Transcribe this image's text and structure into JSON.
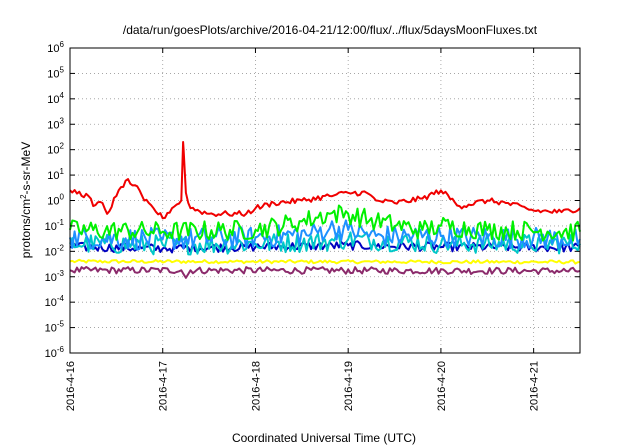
{
  "chart_data": {
    "type": "line",
    "title": "/data/run/goesPlots/archive/2016-04-21/12:00/flux/../flux/5daysMoonFluxes.txt",
    "xlabel": "Coordinated Universal Time (UTC)",
    "ylabel": "protons/cm2-s-sr-MeV",
    "ylabel_parts": [
      "protons/cm",
      "2",
      "-s-sr-MeV"
    ],
    "yscale": "log",
    "ylim": [
      1e-06,
      1000000.0
    ],
    "xlim": [
      0,
      5.5
    ],
    "grid": true,
    "x_ticks": [
      {
        "x": 0,
        "label": "2016-4-16"
      },
      {
        "x": 1,
        "label": "2016-4-17"
      },
      {
        "x": 2,
        "label": "2016-4-18"
      },
      {
        "x": 3,
        "label": "2016-4-19"
      },
      {
        "x": 4,
        "label": "2016-4-20"
      },
      {
        "x": 5,
        "label": "2016-4-21"
      }
    ],
    "y_ticks": [
      {
        "exp": 6,
        "base": "10",
        "sup": "6"
      },
      {
        "exp": 5,
        "base": "10",
        "sup": "5"
      },
      {
        "exp": 4,
        "base": "10",
        "sup": "4"
      },
      {
        "exp": 3,
        "base": "10",
        "sup": "3"
      },
      {
        "exp": 2,
        "base": "10",
        "sup": "2"
      },
      {
        "exp": 1,
        "base": "10",
        "sup": "1"
      },
      {
        "exp": 0,
        "base": "10",
        "sup": "0"
      },
      {
        "exp": -1,
        "base": "10",
        "sup": "-1"
      },
      {
        "exp": -2,
        "base": "10",
        "sup": "-2"
      },
      {
        "exp": -3,
        "base": "10",
        "sup": "-3"
      },
      {
        "exp": -4,
        "base": "10",
        "sup": "-4"
      },
      {
        "exp": -5,
        "base": "10",
        "sup": "-5"
      },
      {
        "exp": -6,
        "base": "10",
        "sup": "-6"
      }
    ],
    "series": [
      {
        "color": "#f00000",
        "noise": 0.05,
        "points": [
          [
            0,
            2.5
          ],
          [
            0.2,
            1.5
          ],
          [
            0.25,
            0.6
          ],
          [
            0.35,
            0.8
          ],
          [
            0.4,
            0.3
          ],
          [
            0.5,
            1.5
          ],
          [
            0.6,
            6
          ],
          [
            0.7,
            4
          ],
          [
            0.8,
            1
          ],
          [
            0.9,
            0.5
          ],
          [
            1.0,
            0.2
          ],
          [
            1.1,
            0.5
          ],
          [
            1.2,
            1.0
          ],
          [
            1.22,
            200
          ],
          [
            1.25,
            2
          ],
          [
            1.3,
            0.5
          ],
          [
            1.5,
            0.3
          ],
          [
            1.7,
            0.3
          ],
          [
            1.9,
            0.3
          ],
          [
            2.0,
            0.5
          ],
          [
            2.2,
            0.8
          ],
          [
            2.5,
            1.0
          ],
          [
            2.8,
            1.5
          ],
          [
            3.0,
            2.0
          ],
          [
            3.2,
            2.0
          ],
          [
            3.3,
            1.0
          ],
          [
            3.5,
            0.8
          ],
          [
            3.8,
            1.2
          ],
          [
            4.0,
            2.5
          ],
          [
            4.2,
            0.6
          ],
          [
            4.5,
            1.0
          ],
          [
            4.7,
            0.8
          ],
          [
            5.0,
            0.4
          ],
          [
            5.3,
            0.35
          ],
          [
            5.5,
            0.5
          ]
        ]
      },
      {
        "color": "#00f000",
        "noise": 0.18,
        "points": [
          [
            0,
            0.07
          ],
          [
            1,
            0.06
          ],
          [
            2,
            0.07
          ],
          [
            2.5,
            0.15
          ],
          [
            2.8,
            0.3
          ],
          [
            3.0,
            0.3
          ],
          [
            3.3,
            0.15
          ],
          [
            3.8,
            0.07
          ],
          [
            4.0,
            0.1
          ],
          [
            4.5,
            0.07
          ],
          [
            5.5,
            0.06
          ]
        ]
      },
      {
        "color": "#1e90ff",
        "noise": 0.2,
        "points": [
          [
            0,
            0.035
          ],
          [
            1,
            0.03
          ],
          [
            2,
            0.035
          ],
          [
            2.6,
            0.05
          ],
          [
            2.8,
            0.08
          ],
          [
            3.0,
            0.07
          ],
          [
            3.3,
            0.04
          ],
          [
            4.0,
            0.04
          ],
          [
            5.5,
            0.03
          ]
        ]
      },
      {
        "color": "#00c8c8",
        "noise": 0.18,
        "points": [
          [
            0,
            0.02
          ],
          [
            1,
            0.018
          ],
          [
            2,
            0.02
          ],
          [
            2.8,
            0.025
          ],
          [
            3.0,
            0.03
          ],
          [
            4.0,
            0.02
          ],
          [
            5.5,
            0.02
          ]
        ]
      },
      {
        "color": "#0000c0",
        "noise": 0.08,
        "points": [
          [
            0,
            0.015
          ],
          [
            1,
            0.013
          ],
          [
            2,
            0.015
          ],
          [
            3,
            0.017
          ],
          [
            4,
            0.015
          ],
          [
            5.5,
            0.014
          ]
        ]
      },
      {
        "color": "#ffff00",
        "noise": 0.03,
        "points": [
          [
            0,
            0.004
          ],
          [
            5.5,
            0.0038
          ]
        ]
      },
      {
        "color": "#8b2a6b",
        "noise": 0.06,
        "points": [
          [
            0,
            0.0018
          ],
          [
            1.2,
            0.0018
          ],
          [
            1.25,
            0.0009
          ],
          [
            1.3,
            0.0018
          ],
          [
            5.5,
            0.0017
          ]
        ]
      }
    ]
  }
}
